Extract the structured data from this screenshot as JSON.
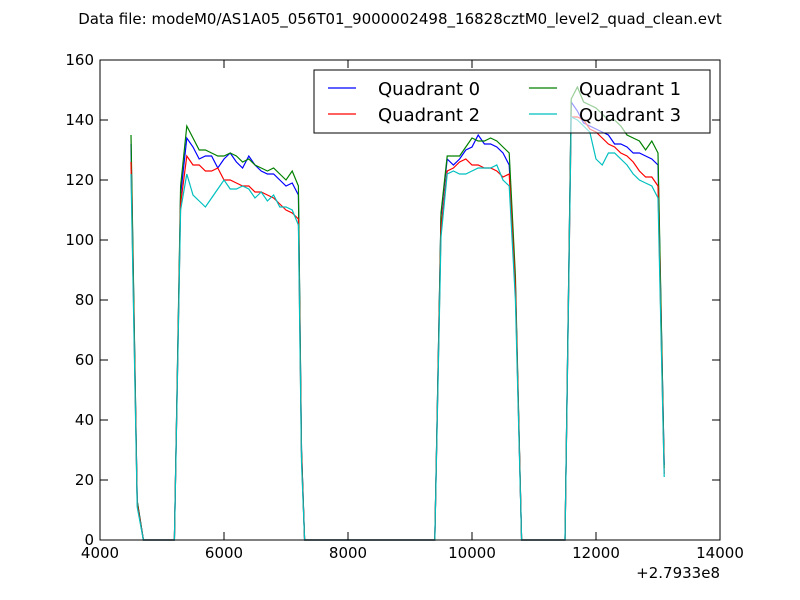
{
  "chart_data": {
    "type": "line",
    "title": "Data file: modeM0/AS1A05_056T01_9000002498_16828cztM0_level2_quad_clean.evt",
    "xlabel": "",
    "ylabel": "",
    "x_offset_label": "+2.7933e8",
    "xlim": [
      4000,
      14000
    ],
    "ylim": [
      0,
      160
    ],
    "xticks": [
      4000,
      6000,
      8000,
      10000,
      12000,
      14000
    ],
    "yticks": [
      0,
      20,
      40,
      60,
      80,
      100,
      120,
      140,
      160
    ],
    "grid": false,
    "legend": {
      "placement": "top-right",
      "columns": 2
    },
    "series": [
      {
        "name": "Quadrant 0",
        "color": "#0000ff",
        "x": [
          4500,
          4600,
          4700,
          5200,
          5300,
          5400,
          5500,
          5600,
          5700,
          5800,
          5900,
          6000,
          6100,
          6200,
          6300,
          6400,
          6500,
          6600,
          6700,
          6800,
          6900,
          7000,
          7100,
          7200,
          7250,
          7300,
          9400,
          9500,
          9600,
          9700,
          9800,
          9900,
          10000,
          10100,
          10200,
          10300,
          10400,
          10500,
          10600,
          10700,
          10800,
          11500,
          11600,
          11700,
          11800,
          11900,
          12000,
          12100,
          12200,
          12300,
          12400,
          12500,
          12600,
          12700,
          12800,
          12900,
          13000,
          13100
        ],
        "y": [
          132,
          13,
          0,
          0,
          115,
          134,
          131,
          127,
          128,
          128,
          124,
          127,
          129,
          126,
          124,
          128,
          125,
          123,
          122,
          122,
          120,
          118,
          119,
          115,
          30,
          0,
          0,
          108,
          127,
          125,
          127,
          130,
          131,
          135,
          132,
          132,
          131,
          129,
          125,
          85,
          0,
          0,
          146,
          143,
          139,
          138,
          137,
          136,
          135,
          132,
          132,
          131,
          129,
          129,
          128,
          127,
          125,
          25
        ]
      },
      {
        "name": "Quadrant 1",
        "color": "#008000",
        "x": [
          4500,
          4600,
          4700,
          5200,
          5300,
          5400,
          5500,
          5600,
          5700,
          5800,
          5900,
          6000,
          6100,
          6200,
          6300,
          6400,
          6500,
          6600,
          6700,
          6800,
          6900,
          7000,
          7100,
          7200,
          7250,
          7300,
          9400,
          9500,
          9600,
          9700,
          9800,
          9900,
          10000,
          10100,
          10200,
          10300,
          10400,
          10500,
          10600,
          10700,
          10800,
          11500,
          11600,
          11700,
          11800,
          11900,
          12000,
          12100,
          12200,
          12300,
          12400,
          12500,
          12600,
          12700,
          12800,
          12900,
          13000,
          13100
        ],
        "y": [
          135,
          13,
          0,
          0,
          118,
          138,
          134,
          130,
          130,
          129,
          128,
          128,
          129,
          128,
          126,
          127,
          125,
          124,
          123,
          124,
          122,
          120,
          123,
          118,
          30,
          0,
          0,
          109,
          128,
          128,
          128,
          131,
          134,
          133,
          133,
          134,
          133,
          131,
          129,
          88,
          0,
          0,
          147,
          151,
          146,
          145,
          144,
          142,
          140,
          140,
          138,
          135,
          134,
          133,
          130,
          133,
          129,
          24
        ]
      },
      {
        "name": "Quadrant 2",
        "color": "#ff0000",
        "x": [
          4500,
          4600,
          4700,
          5200,
          5300,
          5400,
          5500,
          5600,
          5700,
          5800,
          5900,
          6000,
          6100,
          6200,
          6300,
          6400,
          6500,
          6600,
          6700,
          6800,
          6900,
          7000,
          7100,
          7200,
          7250,
          7300,
          9400,
          9500,
          9600,
          9700,
          9800,
          9900,
          10000,
          10100,
          10200,
          10300,
          10400,
          10500,
          10600,
          10700,
          10800,
          11500,
          11600,
          11700,
          11800,
          11900,
          12000,
          12100,
          12200,
          12300,
          12400,
          12500,
          12600,
          12700,
          12800,
          12900,
          13000,
          13100
        ],
        "y": [
          126,
          12,
          0,
          0,
          112,
          128,
          125,
          125,
          123,
          123,
          124,
          120,
          120,
          119,
          118,
          118,
          116,
          116,
          115,
          114,
          112,
          110,
          109,
          107,
          28,
          0,
          0,
          104,
          123,
          124,
          126,
          127,
          125,
          125,
          124,
          124,
          123,
          121,
          122,
          84,
          0,
          0,
          141,
          141,
          140,
          137,
          136,
          134,
          132,
          131,
          129,
          128,
          126,
          123,
          121,
          121,
          118,
          22
        ]
      },
      {
        "name": "Quadrant 3",
        "color": "#00bfbf",
        "x": [
          4500,
          4600,
          4700,
          5200,
          5300,
          5400,
          5500,
          5600,
          5700,
          5800,
          5900,
          6000,
          6100,
          6200,
          6300,
          6400,
          6500,
          6600,
          6700,
          6800,
          6900,
          7000,
          7100,
          7200,
          7250,
          7300,
          9400,
          9500,
          9600,
          9700,
          9800,
          9900,
          10000,
          10100,
          10200,
          10300,
          10400,
          10500,
          10600,
          10700,
          10800,
          11500,
          11600,
          11700,
          11800,
          11900,
          12000,
          12100,
          12200,
          12300,
          12400,
          12500,
          12600,
          12700,
          12800,
          12900,
          13000,
          13100
        ],
        "y": [
          122,
          11,
          0,
          0,
          110,
          122,
          115,
          113,
          111,
          114,
          117,
          120,
          117,
          117,
          118,
          117,
          114,
          116,
          113,
          115,
          111,
          111,
          110,
          105,
          26,
          0,
          0,
          101,
          122,
          123,
          122,
          122,
          123,
          124,
          124,
          124,
          125,
          120,
          118,
          80,
          0,
          0,
          141,
          140,
          138,
          136,
          127,
          125,
          129,
          129,
          127,
          125,
          122,
          120,
          119,
          118,
          114,
          21
        ]
      }
    ]
  }
}
